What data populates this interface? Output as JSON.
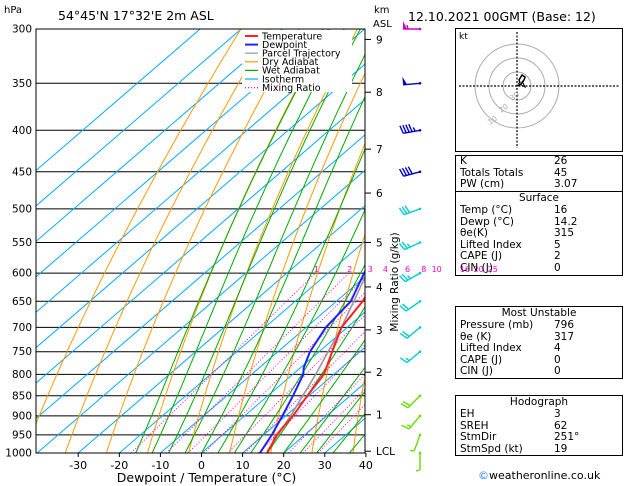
{
  "header": {
    "hpa_label": "hPa",
    "location": "54°45'N  17°32'E  2m  ASL",
    "km_label": "km",
    "asl_label": "ASL",
    "datetime": "12.10.2021  00GMT  (Base: 12)"
  },
  "colors": {
    "temperature": "#ff2020",
    "dewpoint": "#2020ff",
    "parcel": "#999999",
    "dry_adiabat": "#ff9900",
    "wet_adiabat": "#00aa00",
    "isotherm": "#00aaff",
    "mixing_ratio": "#ff00cc",
    "wind_barb_upper": "#cc00cc",
    "wind_barb_mid": "#0000cc",
    "wind_barb_low": "#00cccc",
    "wind_barb_sfc": "#66dd00"
  },
  "chart_data": {
    "type": "line",
    "xlabel": "Dewpoint / Temperature (°C)",
    "ylabel_right": "Mixing Ratio (g/kg)",
    "x_ticks": [
      "-30",
      "-20",
      "-10",
      "0",
      "10",
      "20",
      "30",
      "40"
    ],
    "xlim": [
      -35,
      40
    ],
    "pressure_levels": [
      300,
      350,
      400,
      450,
      500,
      550,
      600,
      650,
      700,
      750,
      800,
      850,
      900,
      950,
      1000
    ],
    "height_ticks_km": [
      {
        "label": "9",
        "p": 309
      },
      {
        "label": "8",
        "p": 359
      },
      {
        "label": "7",
        "p": 422
      },
      {
        "label": "6",
        "p": 478
      },
      {
        "label": "5",
        "p": 550
      },
      {
        "label": "4",
        "p": 624
      },
      {
        "label": "3",
        "p": 705
      },
      {
        "label": "2",
        "p": 795
      },
      {
        "label": "1",
        "p": 897
      },
      {
        "label": "LCL",
        "p": 995
      }
    ],
    "mixing_ratio_labels": [
      "1",
      "2",
      "3",
      "4",
      "6",
      "8",
      "10",
      "16",
      "20",
      "25"
    ],
    "mixing_ratio_values": [
      1,
      2,
      3,
      4,
      6,
      8,
      10,
      16,
      20,
      25
    ],
    "legend": [
      "Temperature",
      "Dewpoint",
      "Parcel Trajectory",
      "Dry Adiabat",
      "Wet Adiabat",
      "Isotherm",
      "Mixing Ratio"
    ],
    "legend_placement": "top",
    "series": [
      {
        "name": "Temperature",
        "points": [
          [
            1000,
            16
          ],
          [
            950,
            13.2
          ],
          [
            925,
            12.4
          ],
          [
            900,
            11.8
          ],
          [
            850,
            9.6
          ],
          [
            800,
            7.6
          ],
          [
            750,
            3.2
          ],
          [
            700,
            -1.4
          ],
          [
            650,
            -3.6
          ],
          [
            600,
            -7.6
          ],
          [
            550,
            -11.8
          ],
          [
            500,
            -15.8
          ],
          [
            450,
            -20.4
          ],
          [
            420,
            -26.5
          ],
          [
            400,
            -29
          ],
          [
            350,
            -37.5
          ],
          [
            320,
            -44
          ],
          [
            300,
            -47.5
          ]
        ]
      },
      {
        "name": "Dewpoint",
        "points": [
          [
            1000,
            14.2
          ],
          [
            950,
            12
          ],
          [
            900,
            9.2
          ],
          [
            850,
            6.1
          ],
          [
            800,
            2.6
          ],
          [
            785,
            0.8
          ],
          [
            750,
            -2.2
          ],
          [
            700,
            -5.2
          ],
          [
            650,
            -6.5
          ],
          [
            600,
            -11.2
          ],
          [
            575,
            -13
          ],
          [
            550,
            -17.2
          ],
          [
            500,
            -24.5
          ],
          [
            465,
            -29.5
          ],
          [
            440,
            -28.5
          ],
          [
            420,
            -32
          ],
          [
            395,
            -41.5
          ],
          [
            370,
            -49.5
          ],
          [
            350,
            -52
          ],
          [
            320,
            -55
          ],
          [
            300,
            -57
          ]
        ]
      },
      {
        "name": "Parcel Trajectory",
        "points": [
          [
            1000,
            16
          ],
          [
            995,
            15.5
          ],
          [
            900,
            11.2
          ],
          [
            800,
            5.6
          ],
          [
            700,
            -1.4
          ],
          [
            600,
            -10.5
          ],
          [
            500,
            -22
          ],
          [
            400,
            -37
          ],
          [
            300,
            -56
          ]
        ]
      }
    ],
    "wind_barbs": [
      {
        "p": 300,
        "dir": 270,
        "speed_kt": 55
      },
      {
        "p": 350,
        "dir": 265,
        "speed_kt": 50
      },
      {
        "p": 400,
        "dir": 260,
        "speed_kt": 45
      },
      {
        "p": 450,
        "dir": 255,
        "speed_kt": 40
      },
      {
        "p": 500,
        "dir": 250,
        "speed_kt": 30
      },
      {
        "p": 550,
        "dir": 245,
        "speed_kt": 25
      },
      {
        "p": 600,
        "dir": 240,
        "speed_kt": 25
      },
      {
        "p": 650,
        "dir": 235,
        "speed_kt": 20
      },
      {
        "p": 700,
        "dir": 230,
        "speed_kt": 20
      },
      {
        "p": 750,
        "dir": 230,
        "speed_kt": 15
      },
      {
        "p": 850,
        "dir": 225,
        "speed_kt": 20
      },
      {
        "p": 900,
        "dir": 220,
        "speed_kt": 15
      },
      {
        "p": 950,
        "dir": 200,
        "speed_kt": 5
      },
      {
        "p": 1000,
        "dir": 180,
        "speed_kt": 5
      }
    ]
  },
  "hodograph": {
    "label": "kt",
    "ring_labels": [
      "10",
      "20",
      "30"
    ]
  },
  "indices": [
    {
      "label": "K",
      "value": "26"
    },
    {
      "label": "Totals Totals",
      "value": "45"
    },
    {
      "label": "PW (cm)",
      "value": "3.07"
    }
  ],
  "surface": {
    "title": "Surface",
    "rows": [
      {
        "label": "Temp (°C)",
        "value": "16"
      },
      {
        "label": "Dewp (°C)",
        "value": "14.2"
      },
      {
        "label": "θe(K)",
        "value": "315"
      },
      {
        "label": "Lifted Index",
        "value": "5"
      },
      {
        "label": "CAPE (J)",
        "value": "2"
      },
      {
        "label": "CIN (J)",
        "value": "0"
      }
    ]
  },
  "most_unstable": {
    "title": "Most Unstable",
    "rows": [
      {
        "label": "Pressure (mb)",
        "value": "796"
      },
      {
        "label": "θe (K)",
        "value": "317"
      },
      {
        "label": "Lifted Index",
        "value": "4"
      },
      {
        "label": "CAPE (J)",
        "value": "0"
      },
      {
        "label": "CIN (J)",
        "value": "0"
      }
    ]
  },
  "hodograph_stats": {
    "title": "Hodograph",
    "rows": [
      {
        "label": "EH",
        "value": "3"
      },
      {
        "label": "SREH",
        "value": "62"
      },
      {
        "label": "StmDir",
        "value": "251°"
      },
      {
        "label": "StmSpd (kt)",
        "value": "19"
      }
    ]
  },
  "footer": {
    "symbol": "©",
    "text": "weatheronline.co.uk"
  }
}
